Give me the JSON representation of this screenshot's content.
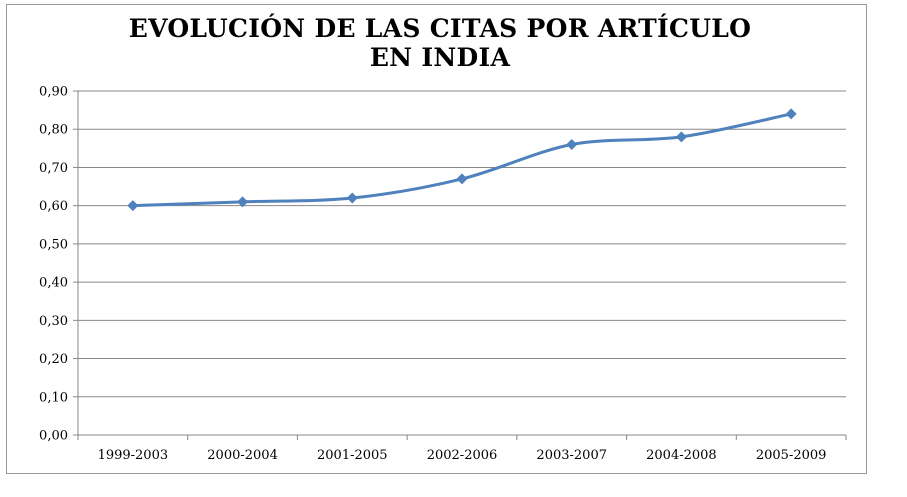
{
  "chart_data": {
    "type": "line",
    "title": "EVOLUCIÓN DE LAS CITAS POR ARTÍCULO\nEN INDIA",
    "xlabel": "",
    "ylabel": "",
    "categories": [
      "1999-2003",
      "2000-2004",
      "2001-2005",
      "2002-2006",
      "2003-2007",
      "2004-2008",
      "2005-2009"
    ],
    "series": [
      {
        "values": [
          0.6,
          0.61,
          0.62,
          0.67,
          0.76,
          0.78,
          0.84
        ]
      }
    ],
    "ylim": [
      0,
      0.9
    ],
    "yticks": [
      "0,00",
      "0,10",
      "0,20",
      "0,30",
      "0,40",
      "0,50",
      "0,60",
      "0,70",
      "0,80",
      "0,90"
    ],
    "grid": true,
    "legend": "none",
    "colors": {
      "series": "#4F81BD",
      "grid": "#888888",
      "axis": "#888888"
    },
    "marker": "diamond"
  }
}
